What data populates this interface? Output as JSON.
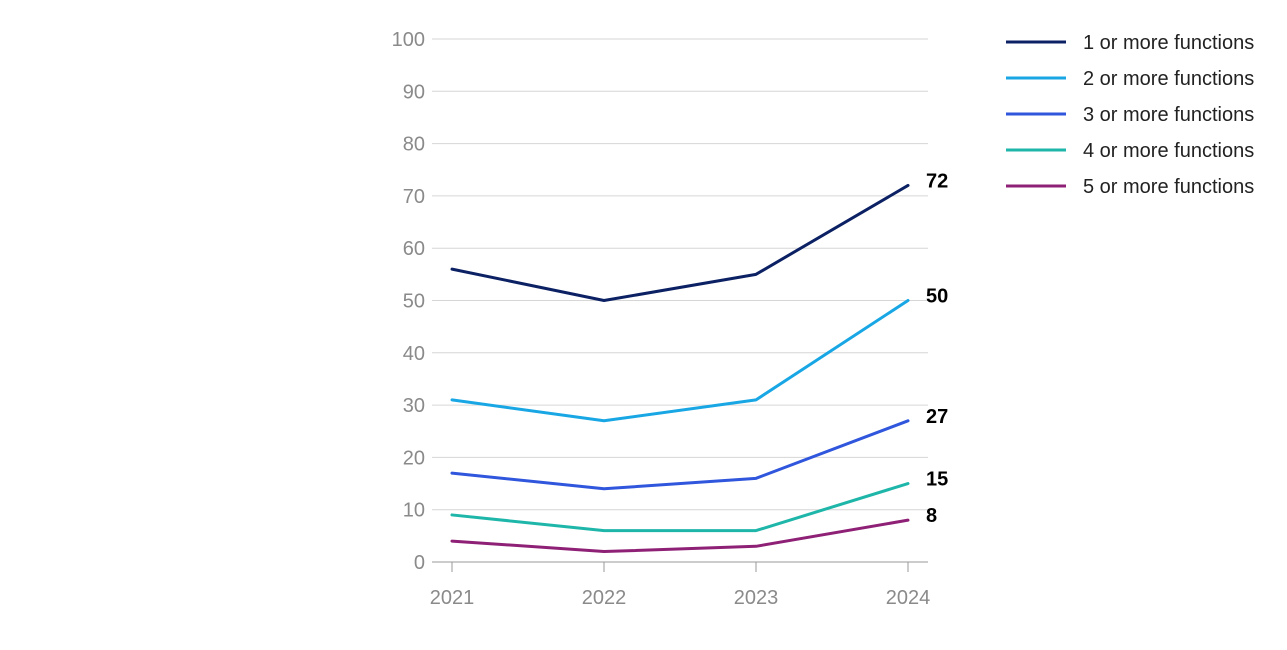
{
  "chart_data": {
    "type": "line",
    "x": [
      "2021",
      "2022",
      "2023",
      "2024"
    ],
    "ylim": [
      0,
      100
    ],
    "yticks": [
      0,
      10,
      20,
      30,
      40,
      50,
      60,
      70,
      80,
      90,
      100
    ],
    "grid": true,
    "legend_position": "top-right",
    "end_labels_shown": true,
    "series": [
      {
        "name": "1 or more functions",
        "color": "#0b2164",
        "values": [
          56,
          50,
          55,
          72
        ],
        "end_label": "72"
      },
      {
        "name": "2 or more functions",
        "color": "#18a7e4",
        "values": [
          31,
          27,
          31,
          50
        ],
        "end_label": "50"
      },
      {
        "name": "3 or more functions",
        "color": "#2f56dc",
        "values": [
          17,
          14,
          16,
          27
        ],
        "end_label": "27"
      },
      {
        "name": "4 or more functions",
        "color": "#1fb6aa",
        "values": [
          9,
          6,
          6,
          15
        ],
        "end_label": "15"
      },
      {
        "name": "5 or more functions",
        "color": "#8e2076",
        "values": [
          4,
          2,
          3,
          8
        ],
        "end_label": "8"
      }
    ]
  }
}
